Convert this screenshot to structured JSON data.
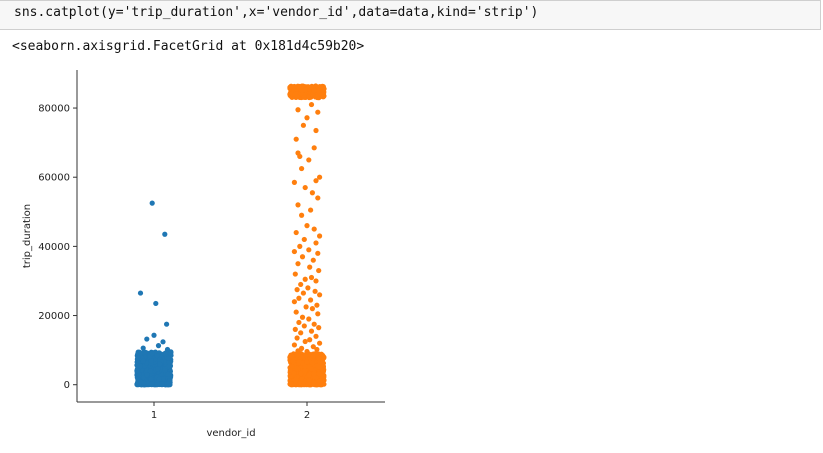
{
  "code_cell": {
    "source": "sns.catplot(y='trip_duration',x='vendor_id',data=data,kind='strip')"
  },
  "output": {
    "repr_text": "<seaborn.axisgrid.FacetGrid at 0x181d4c59b20>"
  },
  "chart_data": {
    "type": "scatter",
    "kind": "strip",
    "xlabel": "vendor_id",
    "ylabel": "trip_duration",
    "categories": [
      "1",
      "2"
    ],
    "yticks": [
      0,
      20000,
      40000,
      60000,
      80000
    ],
    "yticklabels": [
      "0",
      "20000",
      "40000",
      "60000",
      "80000"
    ],
    "ylim": [
      -5000,
      91000
    ],
    "grid": false,
    "series": [
      {
        "category": "1",
        "color": "#1f77b4",
        "dense_band": [
          0,
          9500
        ],
        "points": [
          {
            "x": -0.02,
            "y": 52500
          },
          {
            "x": 0.12,
            "y": 43500
          },
          {
            "x": -0.15,
            "y": 26500
          },
          {
            "x": 0.02,
            "y": 23500
          },
          {
            "x": 0.14,
            "y": 17500
          },
          {
            "x": 0.0,
            "y": 14300
          },
          {
            "x": -0.08,
            "y": 13200
          },
          {
            "x": 0.1,
            "y": 12400
          },
          {
            "x": 0.05,
            "y": 11300
          },
          {
            "x": -0.12,
            "y": 10600
          },
          {
            "x": 0.15,
            "y": 10200
          }
        ]
      },
      {
        "category": "2",
        "color": "#ff7f0e",
        "dense_band": [
          0,
          9000
        ],
        "top_band": [
          83000,
          86400
        ],
        "points": [
          {
            "x": 0.05,
            "y": 81000
          },
          {
            "x": -0.1,
            "y": 79500
          },
          {
            "x": 0.12,
            "y": 78800
          },
          {
            "x": 0.0,
            "y": 77200
          },
          {
            "x": -0.04,
            "y": 75000
          },
          {
            "x": 0.1,
            "y": 73500
          },
          {
            "x": -0.12,
            "y": 71000
          },
          {
            "x": 0.08,
            "y": 68500
          },
          {
            "x": -0.1,
            "y": 67000
          },
          {
            "x": -0.08,
            "y": 66000
          },
          {
            "x": 0.02,
            "y": 65000
          },
          {
            "x": -0.06,
            "y": 62500
          },
          {
            "x": 0.14,
            "y": 60000
          },
          {
            "x": 0.1,
            "y": 59000
          },
          {
            "x": -0.14,
            "y": 58500
          },
          {
            "x": -0.02,
            "y": 57000
          },
          {
            "x": 0.06,
            "y": 55500
          },
          {
            "x": 0.12,
            "y": 54000
          },
          {
            "x": -0.1,
            "y": 52000
          },
          {
            "x": 0.04,
            "y": 50500
          },
          {
            "x": -0.06,
            "y": 49000
          },
          {
            "x": 0.0,
            "y": 46000
          },
          {
            "x": 0.08,
            "y": 45000
          },
          {
            "x": -0.12,
            "y": 44000
          },
          {
            "x": 0.14,
            "y": 43000
          },
          {
            "x": -0.03,
            "y": 42000
          },
          {
            "x": 0.1,
            "y": 41000
          },
          {
            "x": -0.08,
            "y": 40000
          },
          {
            "x": 0.02,
            "y": 39000
          },
          {
            "x": -0.14,
            "y": 38500
          },
          {
            "x": 0.12,
            "y": 38000
          },
          {
            "x": -0.05,
            "y": 37000
          },
          {
            "x": 0.07,
            "y": 36000
          },
          {
            "x": -0.1,
            "y": 35000
          },
          {
            "x": 0.03,
            "y": 34000
          },
          {
            "x": 0.13,
            "y": 33000
          },
          {
            "x": -0.13,
            "y": 32000
          },
          {
            "x": 0.05,
            "y": 31000
          },
          {
            "x": -0.02,
            "y": 30500
          },
          {
            "x": 0.1,
            "y": 30000
          },
          {
            "x": -0.07,
            "y": 29000
          },
          {
            "x": 0.01,
            "y": 28000
          },
          {
            "x": -0.11,
            "y": 27500
          },
          {
            "x": 0.09,
            "y": 27000
          },
          {
            "x": -0.04,
            "y": 26500
          },
          {
            "x": 0.14,
            "y": 26000
          },
          {
            "x": -0.09,
            "y": 25000
          },
          {
            "x": 0.04,
            "y": 24500
          },
          {
            "x": -0.14,
            "y": 24000
          },
          {
            "x": 0.11,
            "y": 23000
          },
          {
            "x": -0.01,
            "y": 22500
          },
          {
            "x": 0.06,
            "y": 22000
          },
          {
            "x": -0.12,
            "y": 21000
          },
          {
            "x": 0.12,
            "y": 20500
          },
          {
            "x": -0.05,
            "y": 19500
          },
          {
            "x": 0.02,
            "y": 19000
          },
          {
            "x": -0.09,
            "y": 18000
          },
          {
            "x": 0.08,
            "y": 17500
          },
          {
            "x": -0.03,
            "y": 17000
          },
          {
            "x": 0.13,
            "y": 16500
          },
          {
            "x": -0.13,
            "y": 16000
          },
          {
            "x": 0.05,
            "y": 15500
          },
          {
            "x": -0.07,
            "y": 15000
          },
          {
            "x": 0.1,
            "y": 14000
          },
          {
            "x": -0.11,
            "y": 13500
          },
          {
            "x": 0.03,
            "y": 13000
          },
          {
            "x": -0.02,
            "y": 12500
          },
          {
            "x": 0.14,
            "y": 12000
          },
          {
            "x": -0.14,
            "y": 11500
          },
          {
            "x": 0.07,
            "y": 11000
          },
          {
            "x": -0.06,
            "y": 10500
          },
          {
            "x": 0.11,
            "y": 10200
          },
          {
            "x": -0.1,
            "y": 9800
          },
          {
            "x": 0.0,
            "y": 9600
          }
        ]
      }
    ]
  }
}
